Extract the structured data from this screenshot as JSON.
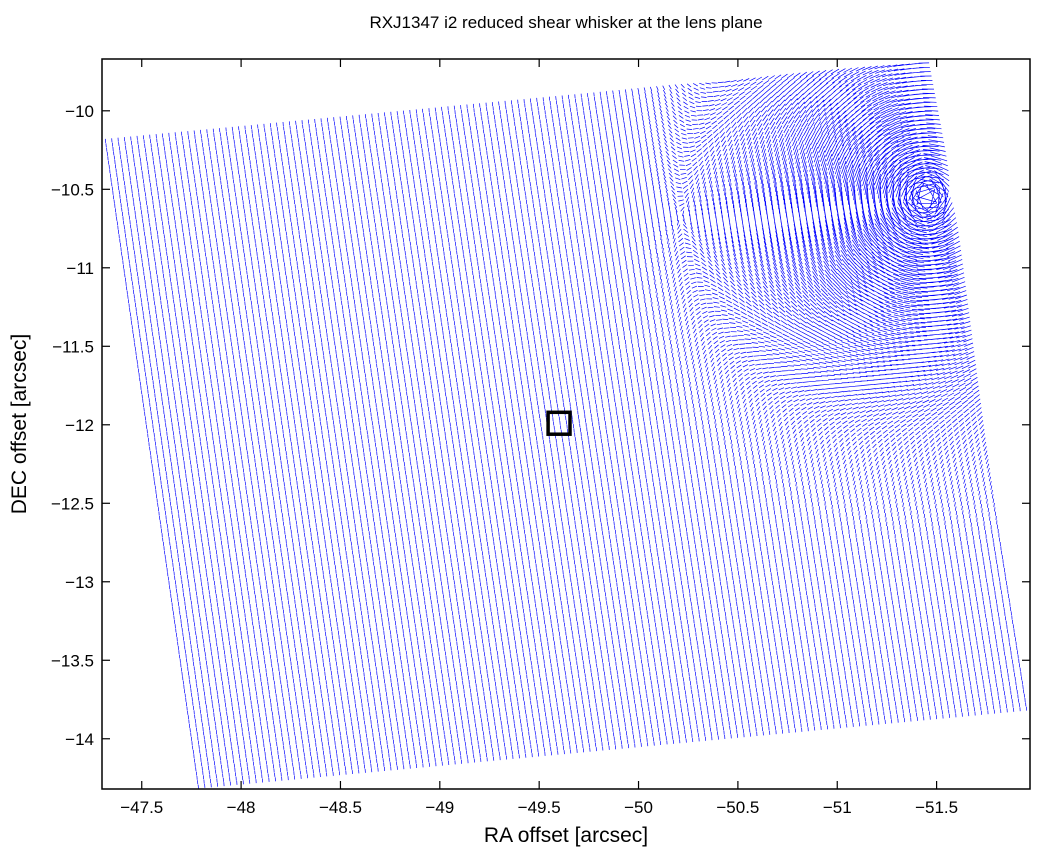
{
  "chart_data": {
    "type": "quiver",
    "title": "RXJ1347 i2 reduced shear whisker at the lens plane",
    "xlabel": "RA offset [arcsec]",
    "ylabel": "DEC offset [arcsec]",
    "x_axis_reversed": true,
    "xlim": [
      -47.3,
      -51.97
    ],
    "ylim": [
      -14.32,
      -9.67
    ],
    "x_ticks": [
      -47.5,
      -48,
      -48.5,
      -49,
      -49.5,
      -50,
      -50.5,
      -51,
      -51.5
    ],
    "x_tick_labels": [
      "−47.5",
      "−48",
      "−48.5",
      "−49",
      "−49.5",
      "−50",
      "−50.5",
      "−51",
      "−51.5"
    ],
    "y_ticks": [
      -10,
      -10.5,
      -11,
      -11.5,
      -12,
      -12.5,
      -13,
      -13.5,
      -14
    ],
    "y_tick_labels": [
      "−10",
      "−10.5",
      "−11",
      "−11.5",
      "−12",
      "−12.5",
      "−13",
      "−13.5",
      "−14"
    ],
    "grid": false,
    "field_corners": [
      {
        "ra": -47.3,
        "dec": -10.18
      },
      {
        "ra": -51.45,
        "dec": -9.68
      },
      {
        "ra": -51.97,
        "dec": -13.82
      },
      {
        "ra": -47.77,
        "dec": -14.32
      }
    ],
    "whisker_grid": {
      "columns": 130,
      "rows": 150,
      "typical_length_arcsec": 0.02
    },
    "shear_concentration": {
      "ra": -51.45,
      "dec": -10.55,
      "description": "whiskers elongated and tilted toward upper-right corner"
    },
    "marker": {
      "shape": "square",
      "ra": -49.6,
      "dec": -11.99,
      "size_arcsec": 0.1
    },
    "whisker_color": "#0000ff",
    "axes_color": "#000000"
  }
}
